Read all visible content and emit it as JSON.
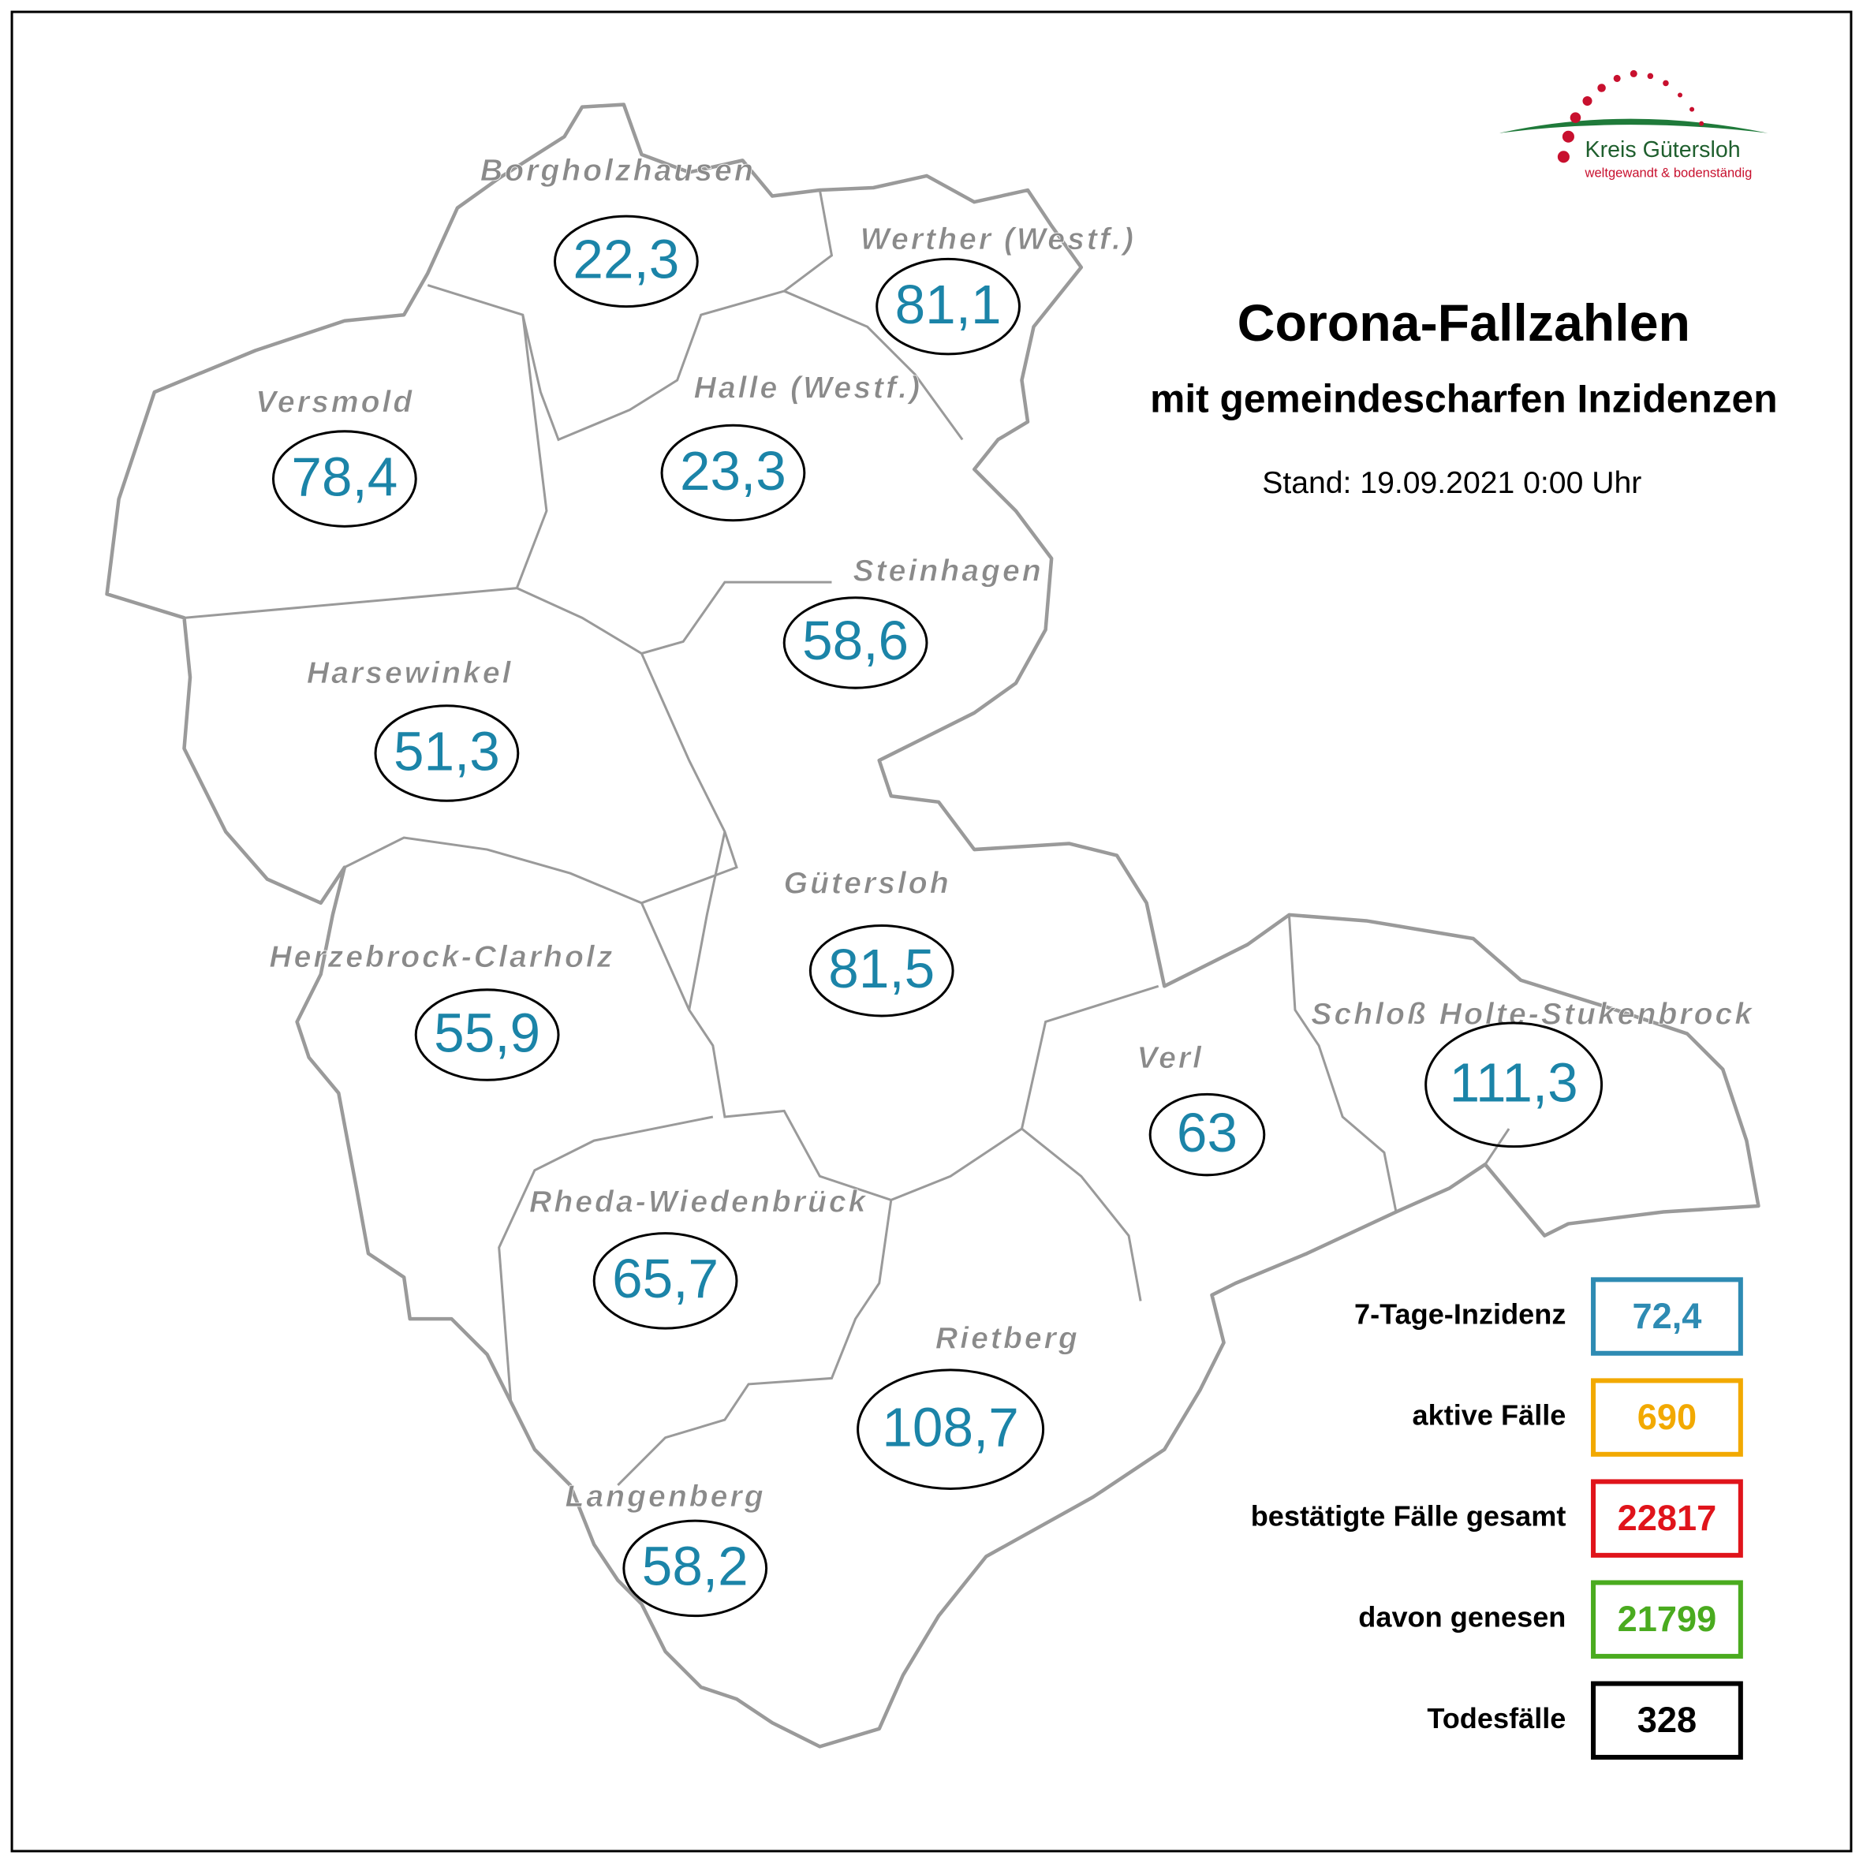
{
  "header": {
    "title": "Corona-Fallzahlen",
    "subtitle": "mit gemeindescharfen Inzidenzen",
    "stand": "Stand: 19.09.2021 0:00 Uhr"
  },
  "logo": {
    "name": "Kreis Gütersloh",
    "slogan": "weltgewandt & bodenständig"
  },
  "municipalities": [
    {
      "name": "Borgholzhausen",
      "value": "22,3"
    },
    {
      "name": "Werther (Westf.)",
      "value": "81,1"
    },
    {
      "name": "Versmold",
      "value": "78,4"
    },
    {
      "name": "Halle (Westf.)",
      "value": "23,3"
    },
    {
      "name": "Steinhagen",
      "value": "58,6"
    },
    {
      "name": "Harsewinkel",
      "value": "51,3"
    },
    {
      "name": "Gütersloh",
      "value": "81,5"
    },
    {
      "name": "Herzebrock-Clarholz",
      "value": "55,9"
    },
    {
      "name": "Verl",
      "value": "63"
    },
    {
      "name": "Schloß Holte-Stukenbrock",
      "value": "111,3"
    },
    {
      "name": "Rheda-Wiedenbrück",
      "value": "65,7"
    },
    {
      "name": "Rietberg",
      "value": "108,7"
    },
    {
      "name": "Langenberg",
      "value": "58,2"
    }
  ],
  "legend": [
    {
      "label": "7-Tage-Inzidenz",
      "value": "72,4",
      "color": "#2e8bb3"
    },
    {
      "label": "aktive Fälle",
      "value": "690",
      "color": "#f2a900"
    },
    {
      "label": "bestätigte Fälle gesamt",
      "value": "22817",
      "color": "#e0141b"
    },
    {
      "label": "davon genesen",
      "value": "21799",
      "color": "#4aab1f"
    },
    {
      "label": "Todesfälle",
      "value": "328",
      "color": "#000000"
    }
  ]
}
